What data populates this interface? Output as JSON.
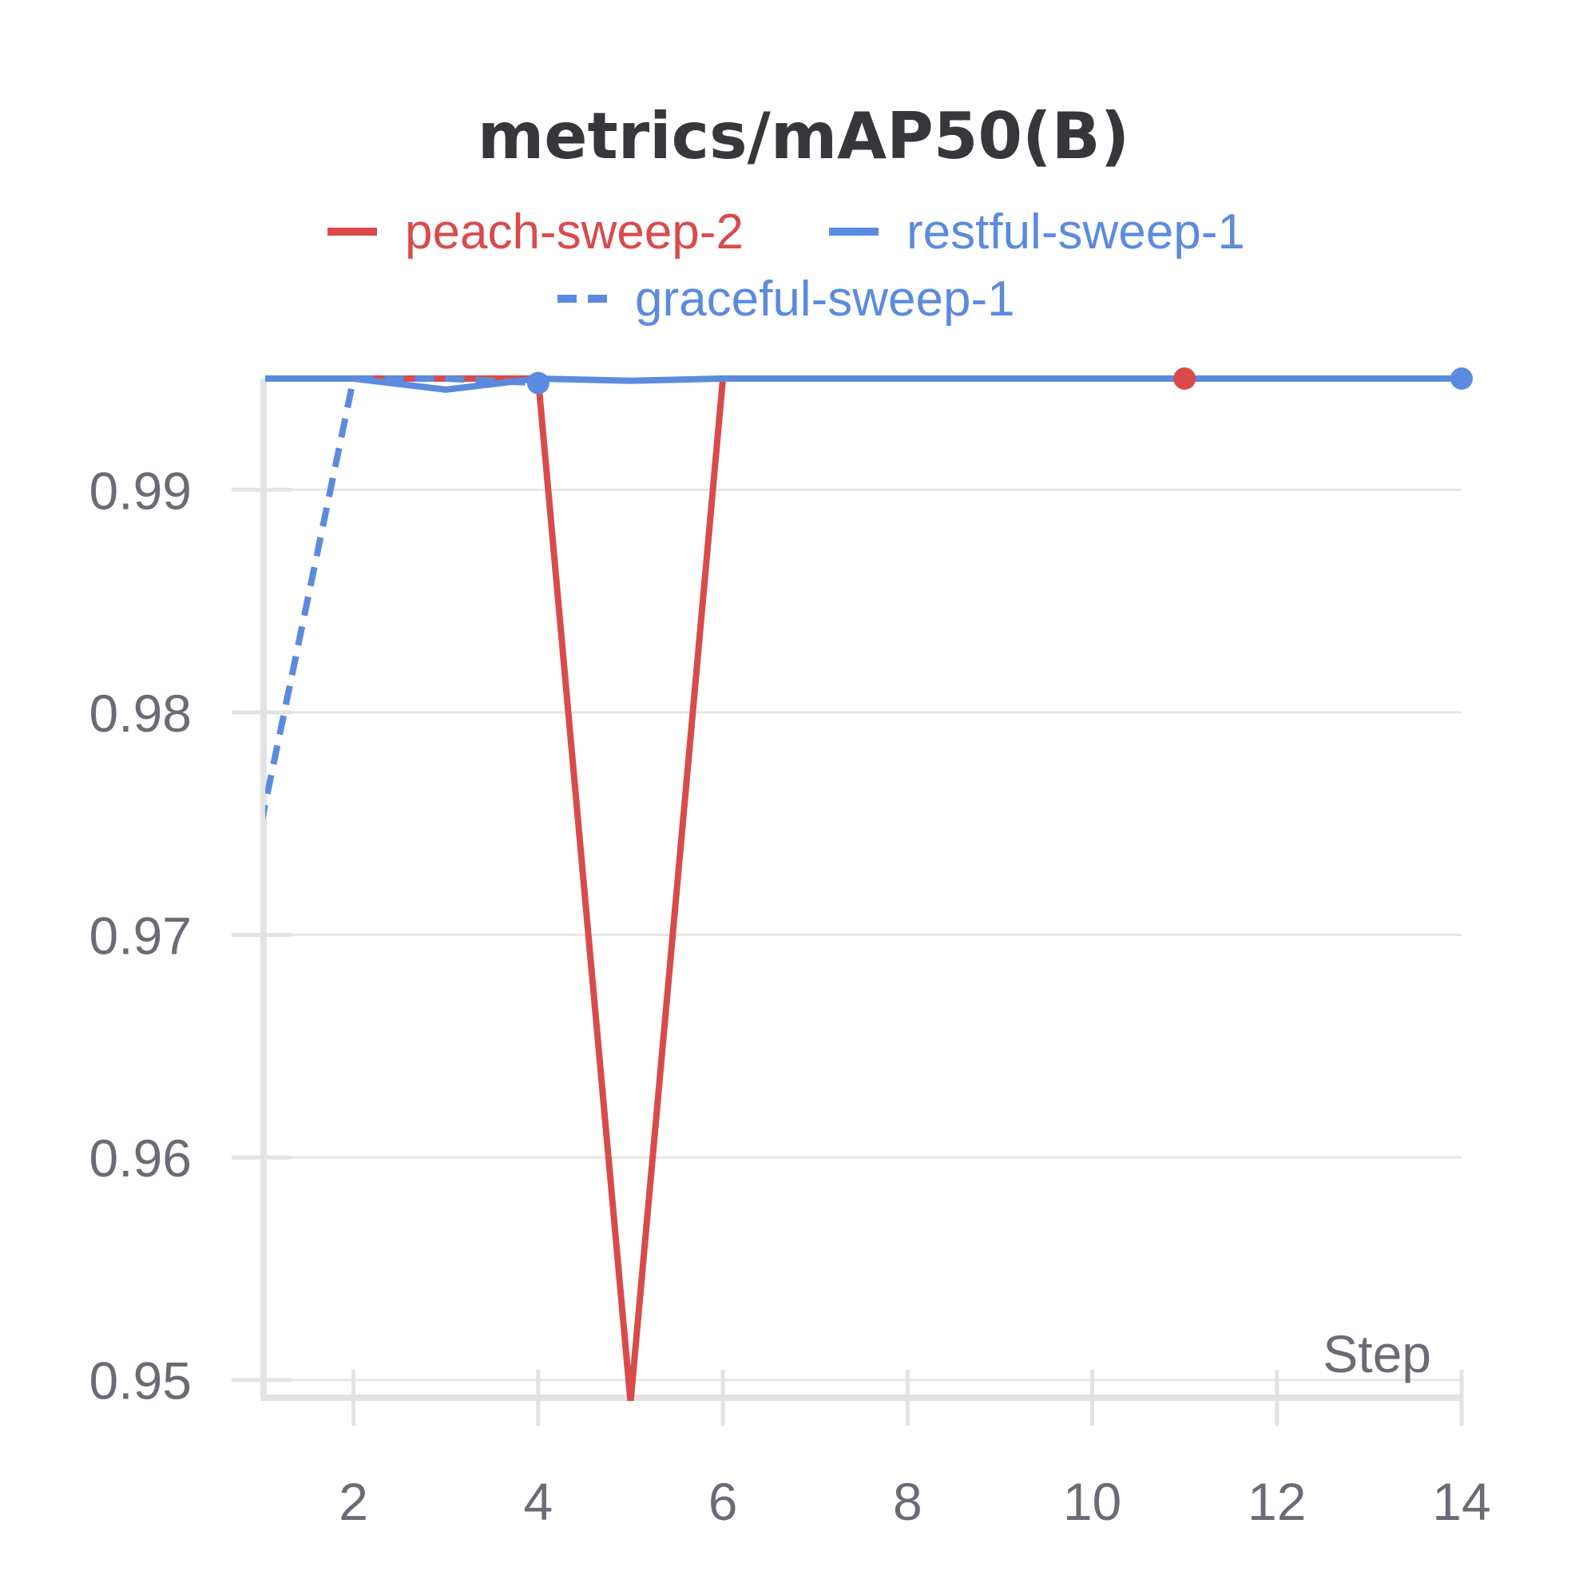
{
  "chart_data": {
    "type": "line",
    "title": "metrics/mAP50(B)",
    "xlabel": "Step",
    "ylabel": "",
    "xlim": [
      1,
      14
    ],
    "ylim": [
      0.9492,
      0.995
    ],
    "xticks": [
      2,
      4,
      6,
      8,
      10,
      12,
      14
    ],
    "yticks": [
      0.95,
      0.96,
      0.97,
      0.98,
      0.99
    ],
    "grid": true,
    "legend_position": "top",
    "series": [
      {
        "name": "peach-sweep-2",
        "color": "#d94b4b",
        "dash": "solid",
        "x": [
          1,
          2,
          3,
          4,
          5,
          6,
          7,
          8,
          9,
          10,
          11
        ],
        "y": [
          0.995,
          0.995,
          0.995,
          0.995,
          0.949,
          0.995,
          0.995,
          0.995,
          0.995,
          0.995,
          0.995
        ],
        "end_marker": true
      },
      {
        "name": "restful-sweep-1",
        "color": "#5b8bde",
        "dash": "solid",
        "x": [
          1,
          2,
          3,
          4,
          5,
          6,
          7,
          8,
          9,
          10,
          11,
          12,
          13,
          14
        ],
        "y": [
          0.995,
          0.995,
          0.9945,
          0.995,
          0.9949,
          0.995,
          0.995,
          0.995,
          0.995,
          0.995,
          0.995,
          0.995,
          0.995,
          0.995
        ],
        "end_marker": true
      },
      {
        "name": "graceful-sweep-1",
        "color": "#5b8bde",
        "dash": "dashed",
        "x": [
          1,
          2,
          3,
          4
        ],
        "y": [
          0.975,
          0.995,
          0.995,
          0.9948
        ],
        "end_marker": true
      }
    ]
  }
}
